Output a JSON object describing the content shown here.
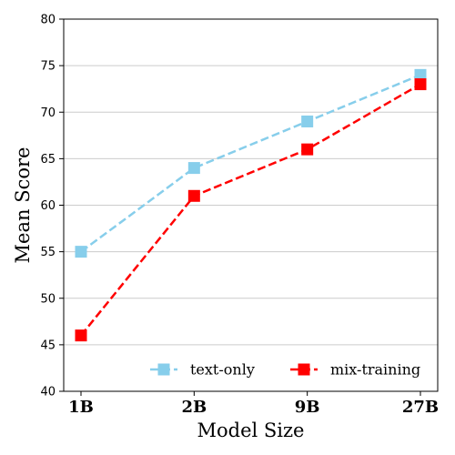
{
  "chart_data": {
    "type": "line",
    "title": "",
    "xlabel": "Model Size",
    "ylabel": "Mean Score",
    "categories": [
      "1B",
      "2B",
      "9B",
      "27B"
    ],
    "ylim": [
      40,
      80
    ],
    "yticks": [
      40,
      45,
      50,
      55,
      60,
      65,
      70,
      75,
      80
    ],
    "grid": "horizontal",
    "legend_position": "bottom-right",
    "series": [
      {
        "name": "text-only",
        "values": [
          55,
          64,
          69,
          74
        ],
        "color": "#87CEEB",
        "marker": "square",
        "linestyle": "dashed"
      },
      {
        "name": "mix-training",
        "values": [
          46,
          61,
          66,
          73
        ],
        "color": "#FF0000",
        "marker": "square",
        "linestyle": "dashed"
      }
    ]
  }
}
